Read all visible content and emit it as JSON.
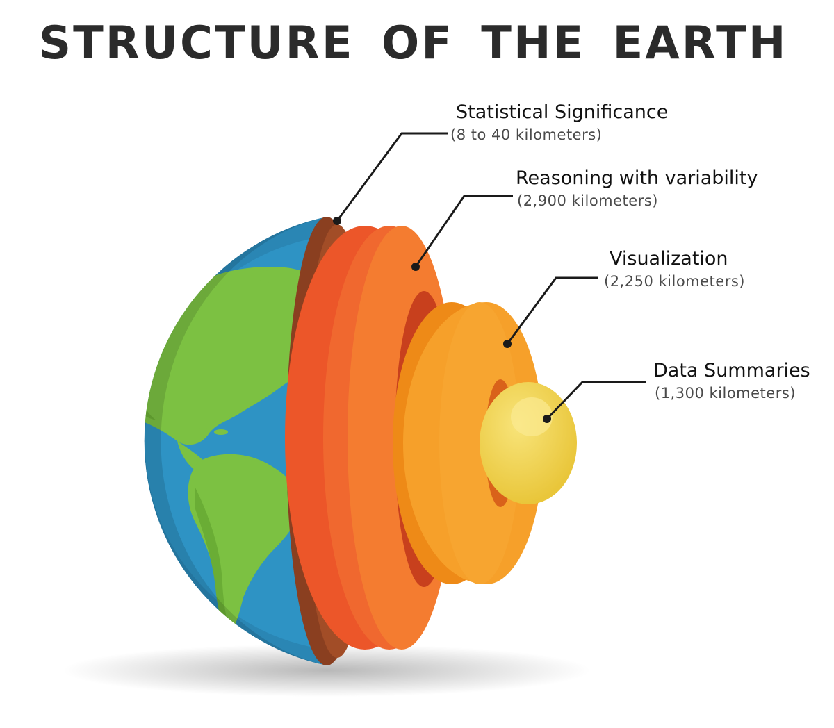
{
  "title": "STRUCTURE OF THE EARTH",
  "layers": [
    {
      "name": "Statistical Significance",
      "depth": "(8 to 40 kilometers)",
      "color": "#8a3f20"
    },
    {
      "name": "Reasoning with variability",
      "depth": "(2,900 kilometers)",
      "color": "#ee5a2a"
    },
    {
      "name": "Visualization",
      "depth": "(2,250 kilometers)",
      "color": "#f4951e"
    },
    {
      "name": "Data Summaries",
      "depth": "(1,300 kilometers)",
      "color": "#f1d348"
    }
  ],
  "colors": {
    "ocean": "#2e8fbf",
    "land": "#7cc142",
    "title": "#2b2b2b"
  }
}
